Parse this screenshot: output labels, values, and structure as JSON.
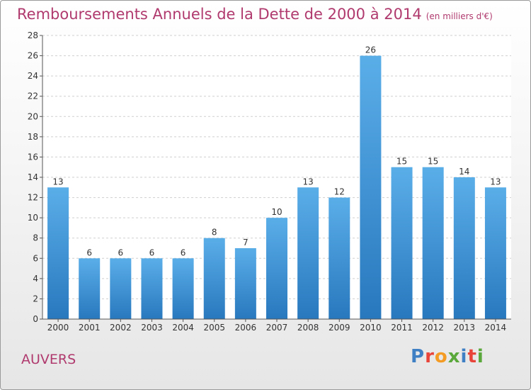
{
  "header": {
    "title": "Remboursements Annuels de la Dette de 2000 à 2014",
    "subtitle": "(en milliers d'€)"
  },
  "commune": "AUVERS",
  "logo": {
    "text": "Proxiti",
    "letter_colors": [
      "#3f7fc4",
      "#e8443a",
      "#f39b23",
      "#5aa83b",
      "#3f7fc4",
      "#e8443a",
      "#5aa83b"
    ]
  },
  "colors": {
    "title": "#b03a6e",
    "bar_light": "#5aaee8",
    "bar_dark": "#2878be"
  },
  "chart_data": {
    "type": "bar",
    "categories": [
      "2000",
      "2001",
      "2002",
      "2003",
      "2004",
      "2005",
      "2006",
      "2007",
      "2008",
      "2009",
      "2010",
      "2011",
      "2012",
      "2013",
      "2014"
    ],
    "values": [
      13,
      6,
      6,
      6,
      6,
      8,
      7,
      10,
      13,
      12,
      26,
      15,
      15,
      14,
      13
    ],
    "ylim": [
      0,
      28
    ],
    "yticks": [
      0,
      2,
      4,
      6,
      8,
      10,
      12,
      14,
      16,
      18,
      20,
      22,
      24,
      26,
      28
    ],
    "grid": true,
    "data_labels": true
  }
}
